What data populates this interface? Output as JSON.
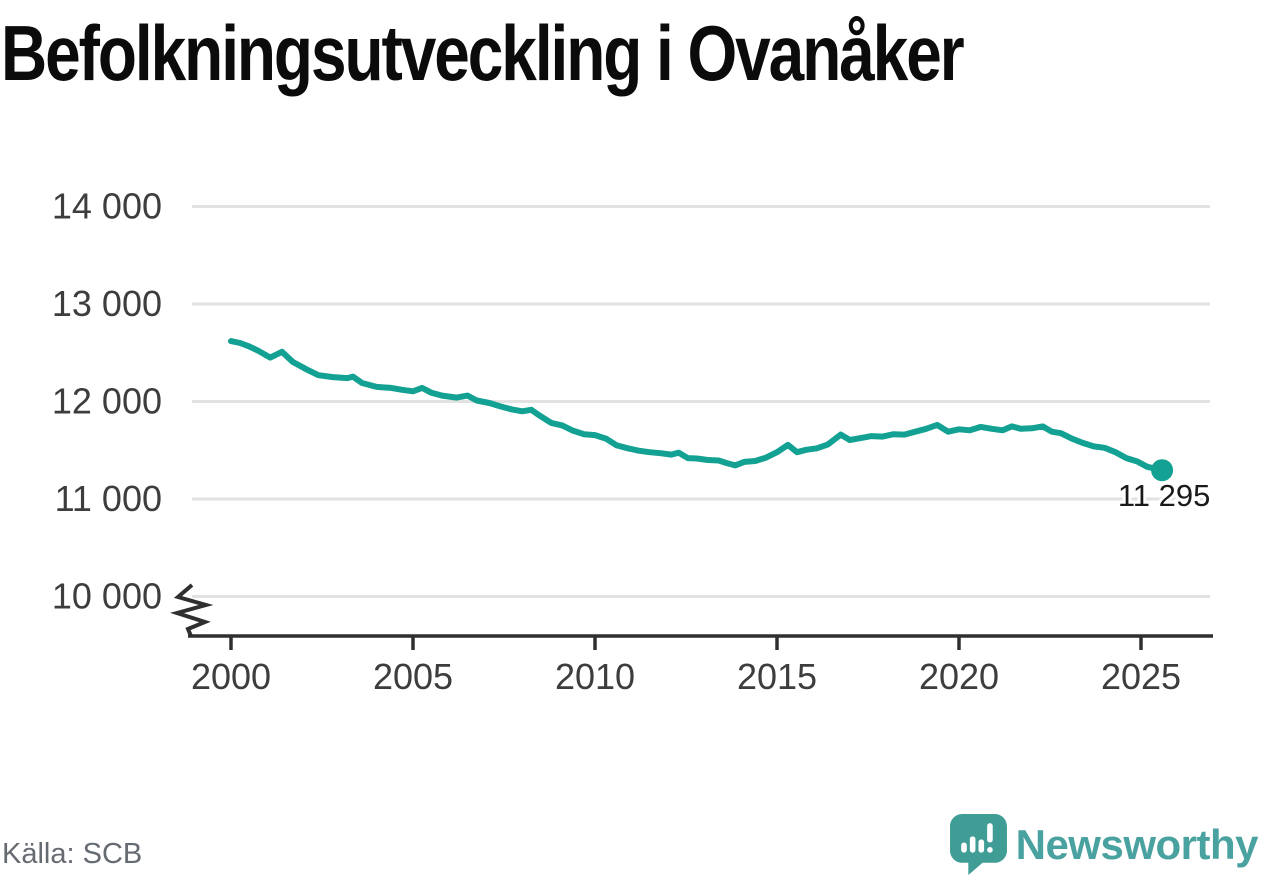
{
  "header": {
    "title": "Befolkningsutveckling i Ovanåker"
  },
  "chart_data": {
    "type": "line",
    "title": "Befolkningsutveckling i Ovanåker",
    "xlabel": "",
    "ylabel": "",
    "xlim": [
      2000,
      2026
    ],
    "ylim": [
      10000,
      14000
    ],
    "grid": "horizontal",
    "y_axis_break": true,
    "legend": "none",
    "line_color": "#12a192",
    "end_label": "11 295",
    "end_value": 11295,
    "y_ticks": [
      {
        "value": 14000,
        "label": "14 000"
      },
      {
        "value": 13000,
        "label": "13 000"
      },
      {
        "value": 12000,
        "label": "12 000"
      },
      {
        "value": 11000,
        "label": "11 000"
      },
      {
        "value": 10000,
        "label": "10 000"
      }
    ],
    "x_ticks": [
      {
        "value": 2000,
        "label": "2000"
      },
      {
        "value": 2005,
        "label": "2005"
      },
      {
        "value": 2010,
        "label": "2010"
      },
      {
        "value": 2015,
        "label": "2015"
      },
      {
        "value": 2020,
        "label": "2020"
      },
      {
        "value": 2025,
        "label": "2025"
      }
    ],
    "points": [
      [
        2000.0,
        12620
      ],
      [
        2000.25,
        12600
      ],
      [
        2000.5,
        12565
      ],
      [
        2000.75,
        12520
      ],
      [
        2001.08,
        12450
      ],
      [
        2001.4,
        12510
      ],
      [
        2001.7,
        12405
      ],
      [
        2002.1,
        12325
      ],
      [
        2002.4,
        12270
      ],
      [
        2002.8,
        12250
      ],
      [
        2003.2,
        12240
      ],
      [
        2003.35,
        12255
      ],
      [
        2003.6,
        12190
      ],
      [
        2004.0,
        12150
      ],
      [
        2004.4,
        12140
      ],
      [
        2004.7,
        12120
      ],
      [
        2005.0,
        12105
      ],
      [
        2005.25,
        12140
      ],
      [
        2005.5,
        12090
      ],
      [
        2005.8,
        12060
      ],
      [
        2006.2,
        12040
      ],
      [
        2006.5,
        12060
      ],
      [
        2006.75,
        12010
      ],
      [
        2007.1,
        11985
      ],
      [
        2007.4,
        11950
      ],
      [
        2007.7,
        11920
      ],
      [
        2008.0,
        11900
      ],
      [
        2008.25,
        11915
      ],
      [
        2008.5,
        11850
      ],
      [
        2008.8,
        11780
      ],
      [
        2009.1,
        11755
      ],
      [
        2009.4,
        11700
      ],
      [
        2009.7,
        11665
      ],
      [
        2010.0,
        11655
      ],
      [
        2010.3,
        11620
      ],
      [
        2010.6,
        11550
      ],
      [
        2010.9,
        11520
      ],
      [
        2011.2,
        11495
      ],
      [
        2011.5,
        11480
      ],
      [
        2011.8,
        11470
      ],
      [
        2012.1,
        11455
      ],
      [
        2012.3,
        11475
      ],
      [
        2012.55,
        11420
      ],
      [
        2012.8,
        11415
      ],
      [
        2013.1,
        11400
      ],
      [
        2013.4,
        11395
      ],
      [
        2013.6,
        11370
      ],
      [
        2013.85,
        11345
      ],
      [
        2014.1,
        11380
      ],
      [
        2014.4,
        11390
      ],
      [
        2014.7,
        11425
      ],
      [
        2015.0,
        11480
      ],
      [
        2015.3,
        11555
      ],
      [
        2015.55,
        11480
      ],
      [
        2015.8,
        11505
      ],
      [
        2016.1,
        11520
      ],
      [
        2016.4,
        11560
      ],
      [
        2016.75,
        11660
      ],
      [
        2017.0,
        11605
      ],
      [
        2017.3,
        11625
      ],
      [
        2017.6,
        11645
      ],
      [
        2017.9,
        11640
      ],
      [
        2018.2,
        11665
      ],
      [
        2018.5,
        11660
      ],
      [
        2018.8,
        11690
      ],
      [
        2019.1,
        11720
      ],
      [
        2019.4,
        11760
      ],
      [
        2019.7,
        11690
      ],
      [
        2020.0,
        11715
      ],
      [
        2020.3,
        11705
      ],
      [
        2020.6,
        11740
      ],
      [
        2020.9,
        11720
      ],
      [
        2021.2,
        11705
      ],
      [
        2021.45,
        11745
      ],
      [
        2021.7,
        11720
      ],
      [
        2022.0,
        11725
      ],
      [
        2022.3,
        11745
      ],
      [
        2022.55,
        11690
      ],
      [
        2022.8,
        11675
      ],
      [
        2023.1,
        11620
      ],
      [
        2023.4,
        11575
      ],
      [
        2023.7,
        11540
      ],
      [
        2024.0,
        11525
      ],
      [
        2024.3,
        11480
      ],
      [
        2024.6,
        11420
      ],
      [
        2024.9,
        11385
      ],
      [
        2025.17,
        11330
      ],
      [
        2025.42,
        11310
      ],
      [
        2025.58,
        11295
      ]
    ]
  },
  "footer": {
    "source": "Källa: SCB",
    "brand": "Newsworthy"
  },
  "colors": {
    "line": "#12a192",
    "grid": "#e2e2e2",
    "axis": "#2f2f2f",
    "axis_text": "#3d3d3d",
    "end_label_text": "#1a1a1a",
    "logo_icon": "#3f9d96",
    "logo_text": "#4aa2a0"
  }
}
